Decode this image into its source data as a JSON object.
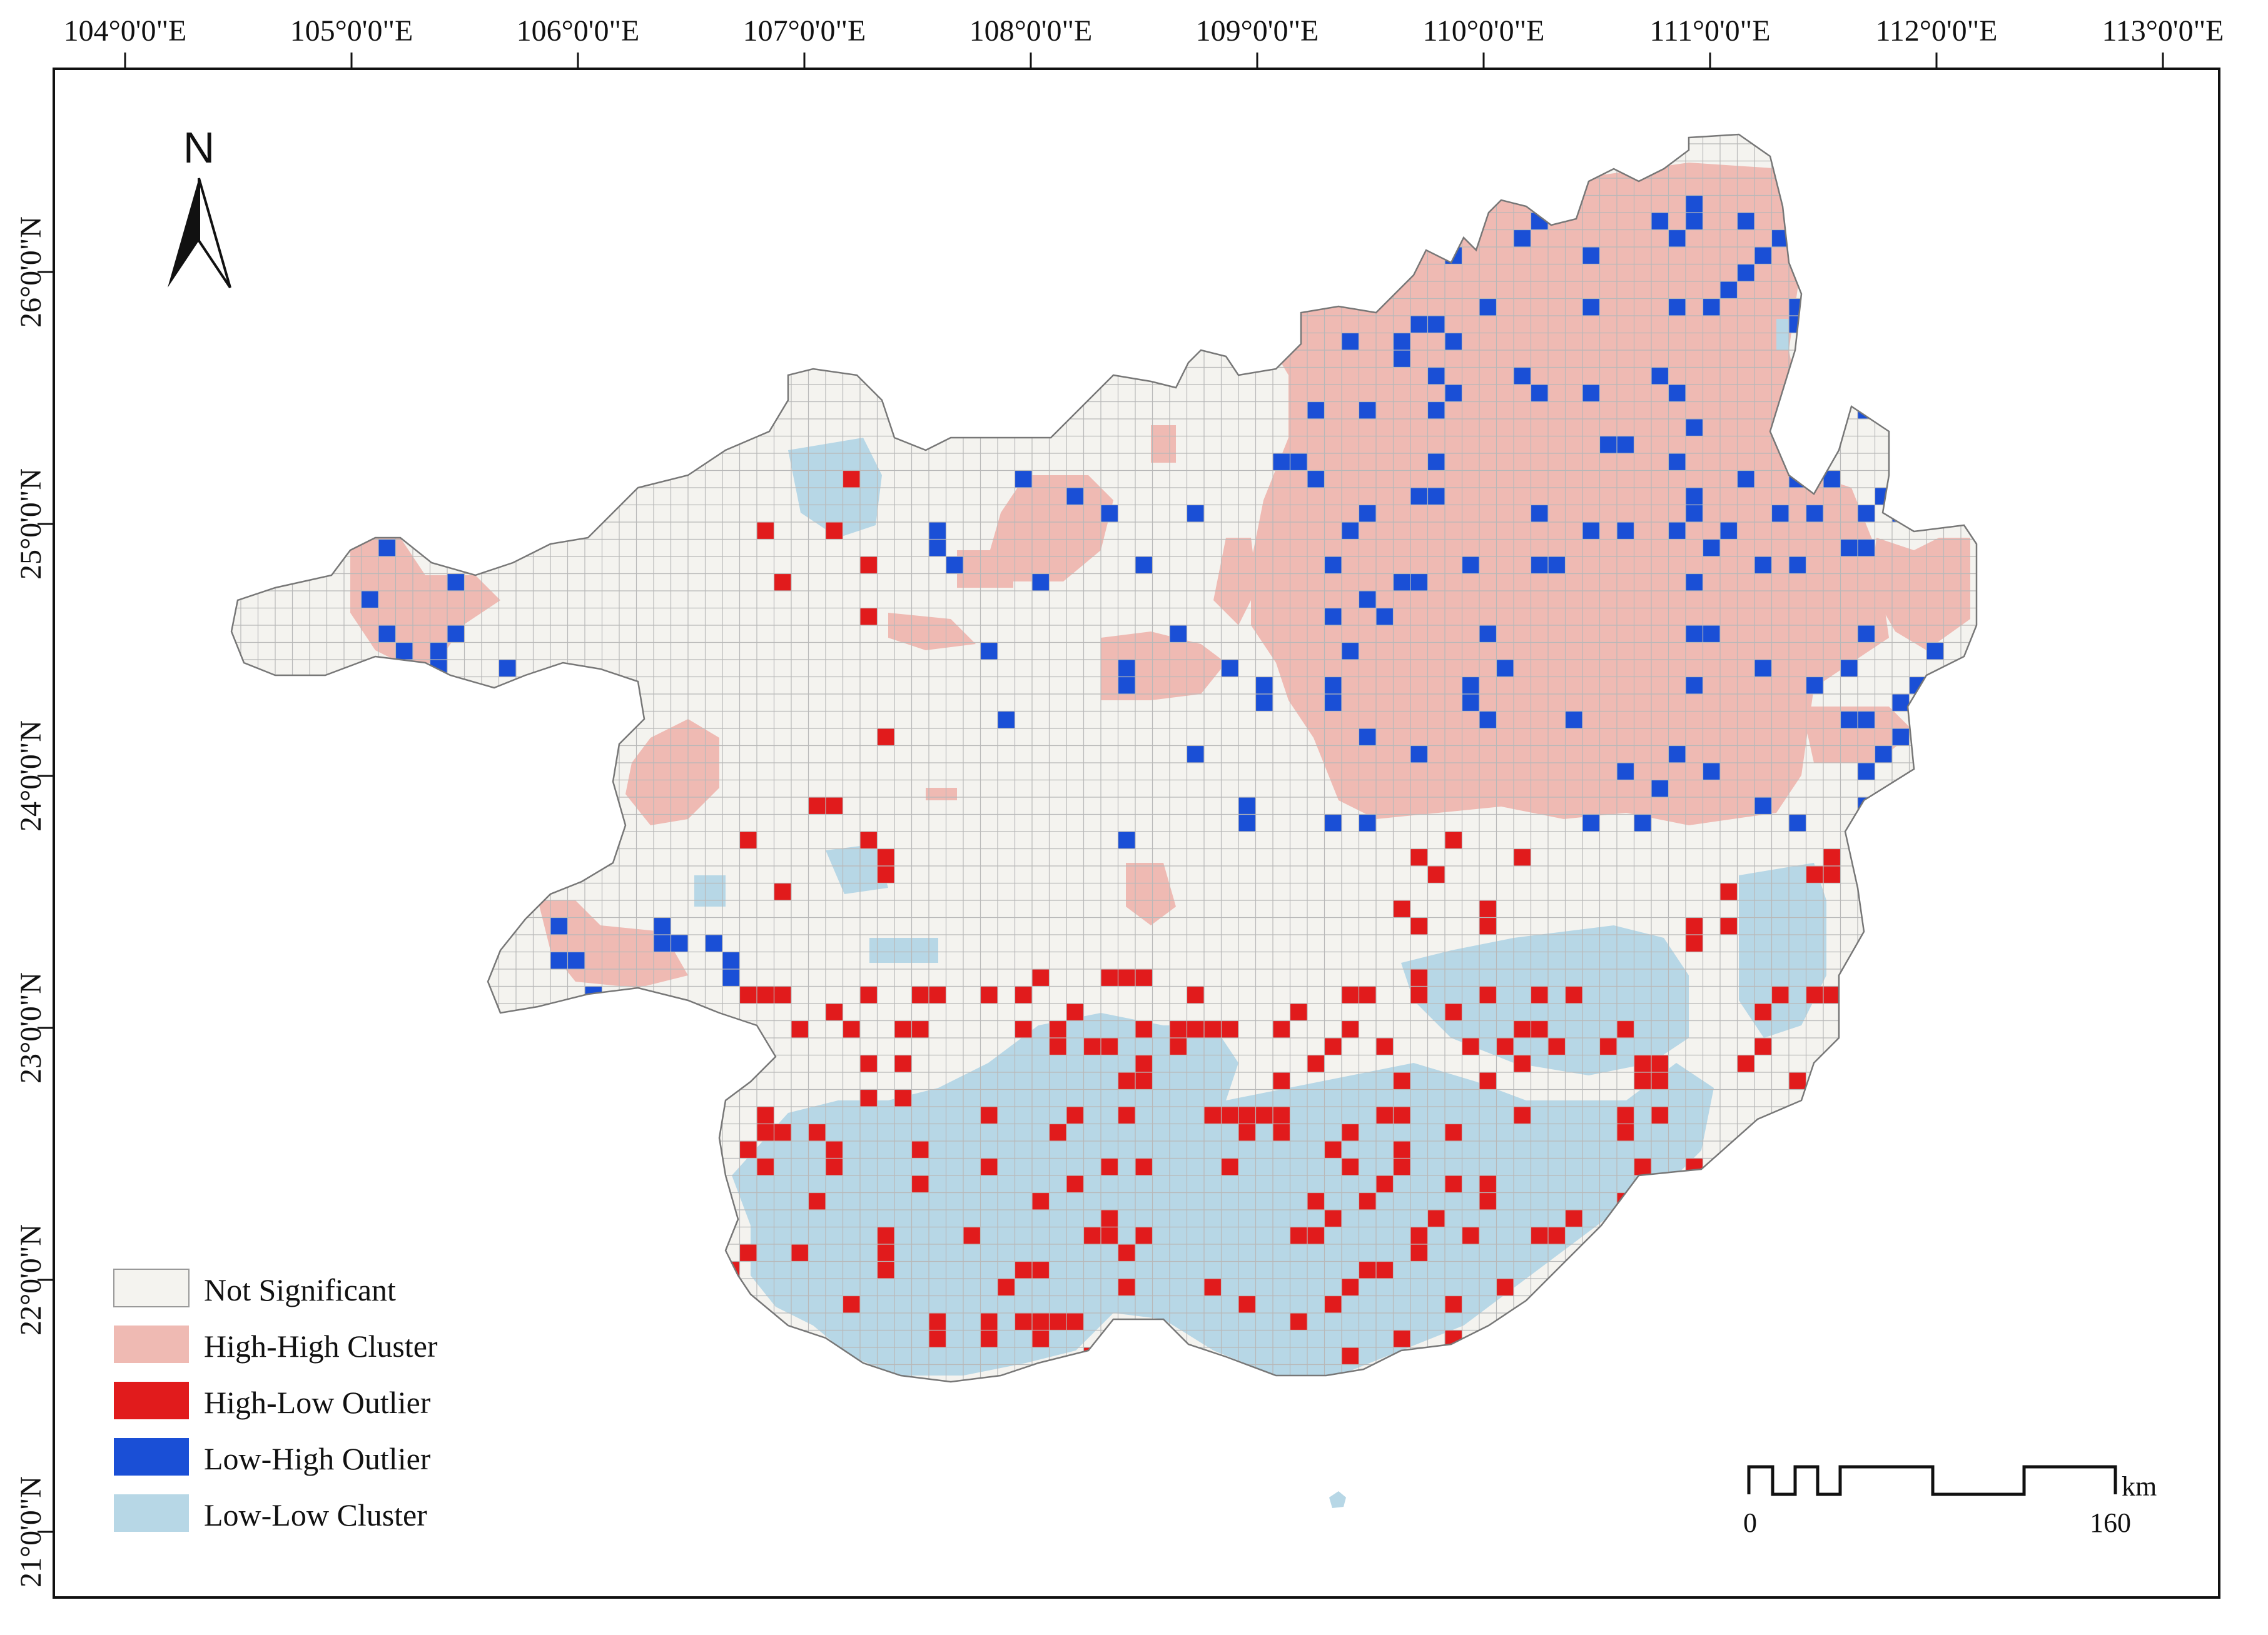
{
  "colors": {
    "not_significant": "#f4f3ef",
    "high_high": "#efbab3",
    "high_low": "#e11b1c",
    "low_high": "#1a4fd6",
    "low_low": "#b7d7e6",
    "grid": "#b8b8b8",
    "outline": "#777777"
  },
  "axes": {
    "lon_labels": [
      "104°0'0\"E",
      "105°0'0\"E",
      "106°0'0\"E",
      "107°0'0\"E",
      "108°0'0\"E",
      "109°0'0\"E",
      "110°0'0\"E",
      "111°0'0\"E",
      "112°0'0\"E",
      "113°0'0\"E"
    ],
    "lat_labels": [
      "26°0'0\"N",
      "25°0'0\"N",
      "24°0'0\"N",
      "23°0'0\"N",
      "22°0'0\"N",
      "21°0'0\"N"
    ]
  },
  "north_arrow": {
    "label": "N",
    "icon": "north-arrow-icon"
  },
  "legend": {
    "items": [
      {
        "key": "not_significant",
        "label": "Not Significant"
      },
      {
        "key": "high_high",
        "label": "High-High Cluster"
      },
      {
        "key": "high_low",
        "label": "High-Low Outlier"
      },
      {
        "key": "low_high",
        "label": "Low-High Outlier"
      },
      {
        "key": "low_low",
        "label": "Low-Low Cluster"
      }
    ]
  },
  "scale_bar": {
    "start": "0",
    "end": "160",
    "unit": "km"
  }
}
